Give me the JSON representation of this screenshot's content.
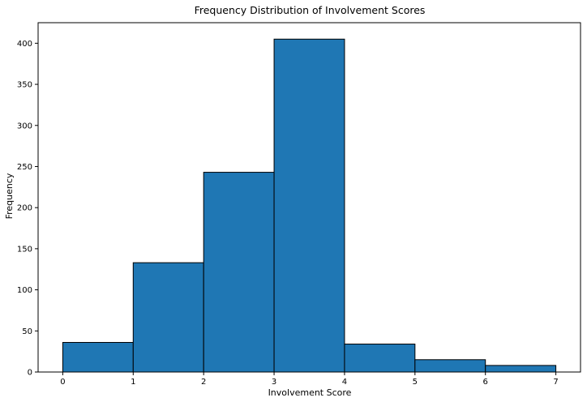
{
  "chart_data": {
    "type": "bar",
    "title": "Frequency Distribution of Involvement Scores",
    "xlabel": "Involvement Score",
    "ylabel": "Frequency",
    "bins": [
      {
        "start": 0,
        "end": 1,
        "value": 36
      },
      {
        "start": 1,
        "end": 2,
        "value": 133
      },
      {
        "start": 2,
        "end": 3,
        "value": 243
      },
      {
        "start": 3,
        "end": 4,
        "value": 405
      },
      {
        "start": 4,
        "end": 5,
        "value": 34
      },
      {
        "start": 5,
        "end": 6,
        "value": 15
      },
      {
        "start": 6,
        "end": 7,
        "value": 8
      }
    ],
    "xlim": [
      -0.35,
      7.35
    ],
    "ylim": [
      0,
      425
    ],
    "xticks": [
      0,
      1,
      2,
      3,
      4,
      5,
      6,
      7
    ],
    "yticks": [
      0,
      50,
      100,
      150,
      200,
      250,
      300,
      350,
      400
    ],
    "grid": false,
    "colors": {
      "bar_fill": "#1f77b4",
      "bar_edge": "#000000",
      "axis": "#000000",
      "background": "#ffffff"
    }
  }
}
